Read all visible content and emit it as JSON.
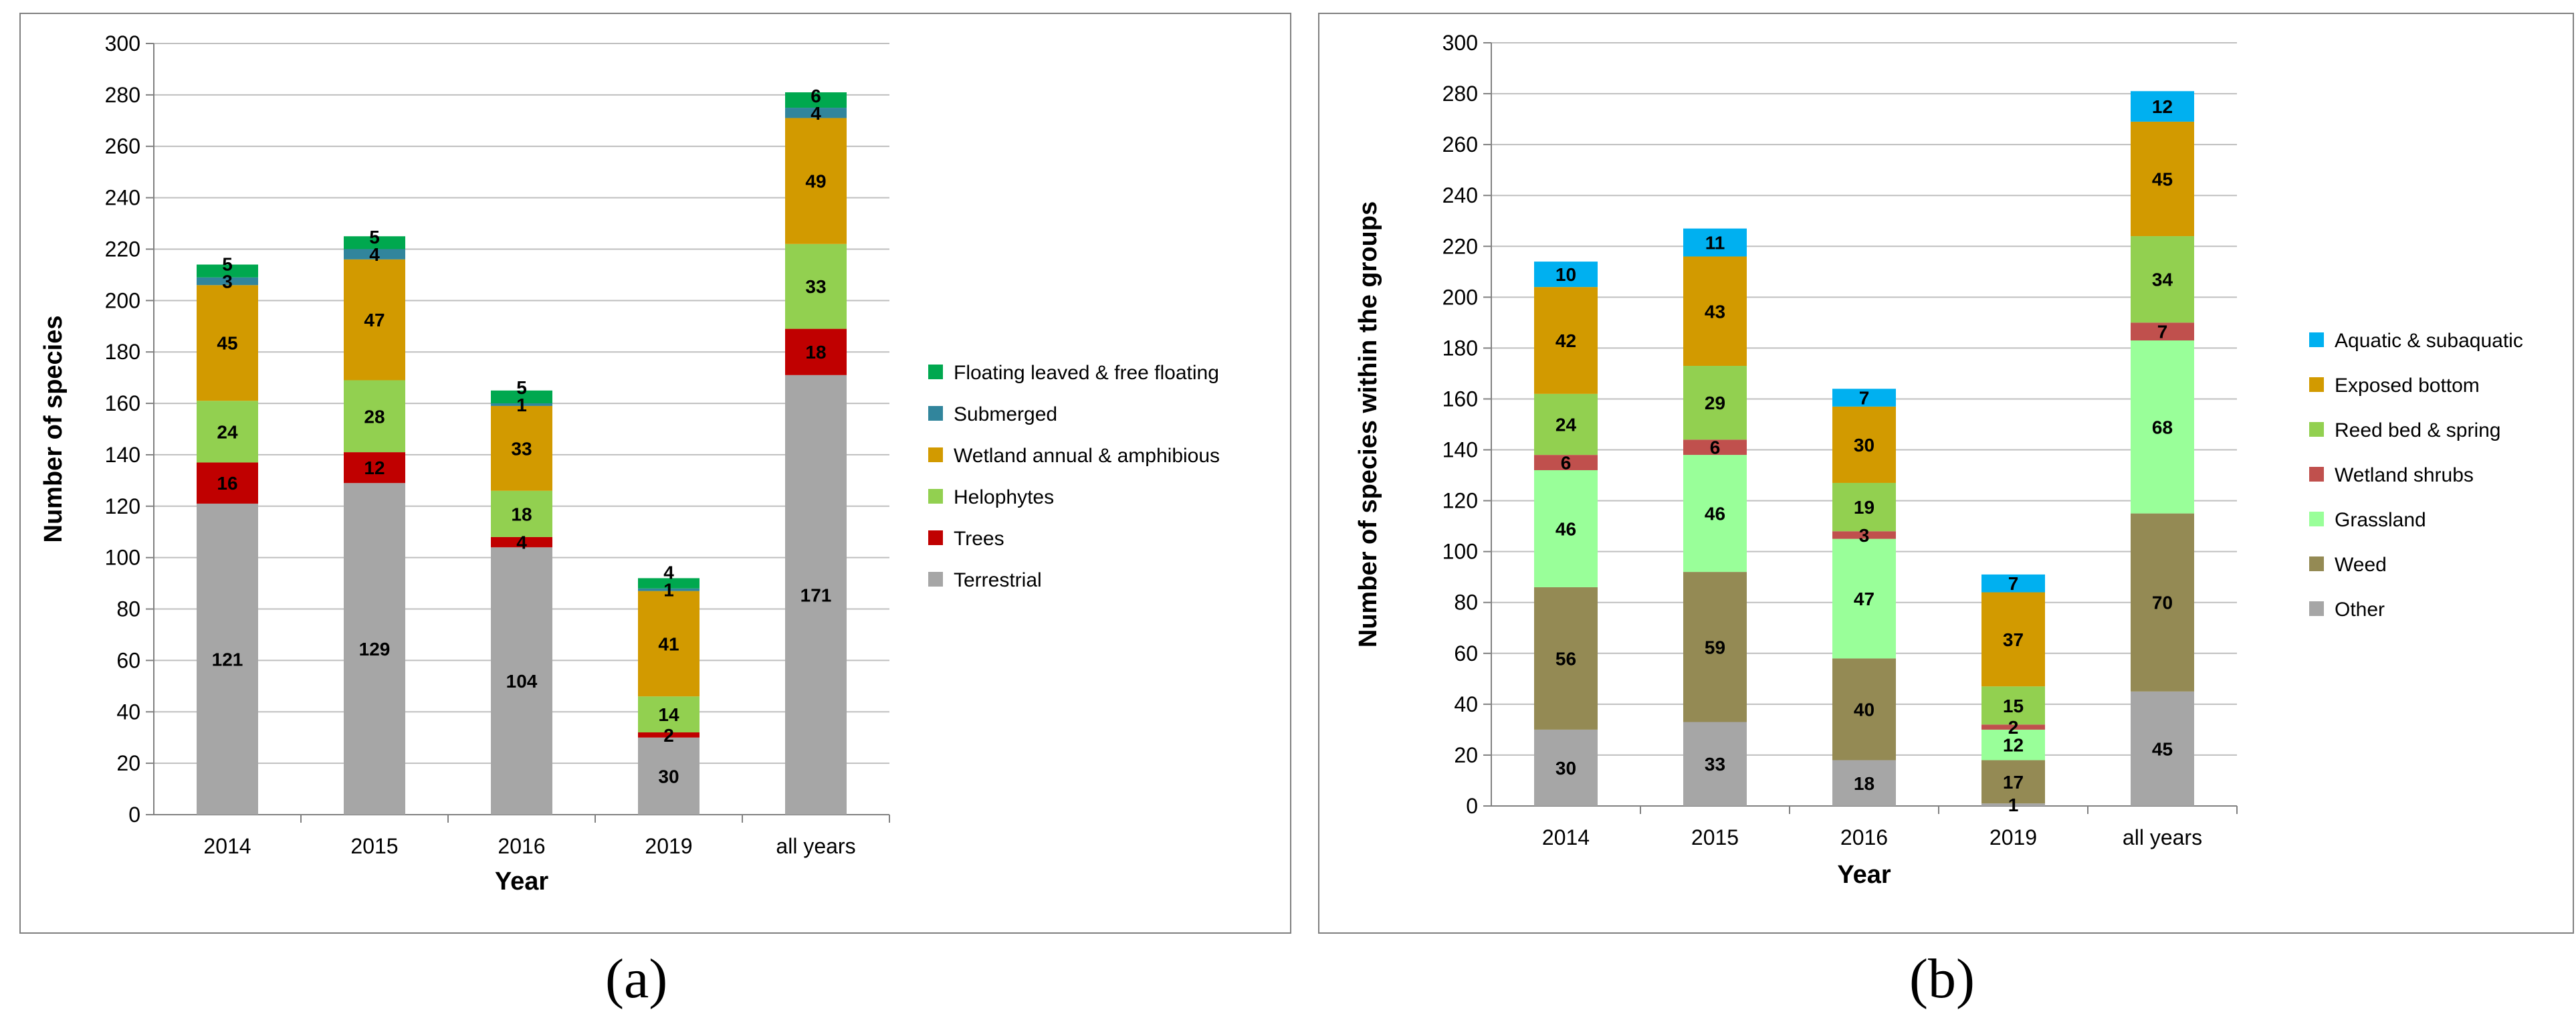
{
  "captions": [
    "(a)",
    "(b)"
  ],
  "chart_data": [
    {
      "type": "bar",
      "stacked": true,
      "title": "",
      "xlabel": "Year",
      "ylabel": "Number of species",
      "ylim": [
        0,
        300
      ],
      "ytick_step": 20,
      "grid": true,
      "legend_position": "right",
      "categories": [
        "2014",
        "2015",
        "2016",
        "2019",
        "all years"
      ],
      "series": [
        {
          "name": "Terrestrial",
          "color": "#a6a6a6",
          "values": [
            121,
            129,
            104,
            30,
            171
          ]
        },
        {
          "name": "Trees",
          "color": "#c00000",
          "values": [
            16,
            12,
            4,
            2,
            18
          ]
        },
        {
          "name": "Helophytes",
          "color": "#92d050",
          "values": [
            24,
            28,
            18,
            14,
            33
          ]
        },
        {
          "name": "Wetland annual & amphibious",
          "color": "#d29a00",
          "values": [
            45,
            47,
            33,
            41,
            49
          ]
        },
        {
          "name": "Submerged",
          "color": "#31859c",
          "values": [
            3,
            4,
            1,
            1,
            4
          ]
        },
        {
          "name": "Floating leaved & free floating",
          "color": "#00a84f",
          "values": [
            5,
            5,
            5,
            4,
            6
          ]
        }
      ]
    },
    {
      "type": "bar",
      "stacked": true,
      "title": "",
      "xlabel": "Year",
      "ylabel": "Number of species within the groups",
      "ylim": [
        0,
        300
      ],
      "ytick_step": 20,
      "grid": true,
      "legend_position": "right",
      "categories": [
        "2014",
        "2015",
        "2016",
        "2019",
        "all years"
      ],
      "series": [
        {
          "name": "Other",
          "color": "#a6a6a6",
          "values": [
            30,
            33,
            18,
            1,
            45
          ]
        },
        {
          "name": "Weed",
          "color": "#948a54",
          "values": [
            56,
            59,
            40,
            17,
            70
          ]
        },
        {
          "name": "Grassland",
          "color": "#99ff99",
          "values": [
            46,
            46,
            47,
            12,
            68
          ]
        },
        {
          "name": "Wetland shrubs",
          "color": "#c0504d",
          "values": [
            6,
            6,
            3,
            2,
            7
          ]
        },
        {
          "name": "Reed bed & spring",
          "color": "#92d050",
          "values": [
            24,
            29,
            19,
            15,
            34
          ]
        },
        {
          "name": "Exposed bottom",
          "color": "#d29a00",
          "values": [
            42,
            43,
            30,
            37,
            45
          ]
        },
        {
          "name": "Aquatic & subaquatic",
          "color": "#00b0f0",
          "values": [
            10,
            11,
            7,
            7,
            12
          ]
        }
      ]
    }
  ]
}
